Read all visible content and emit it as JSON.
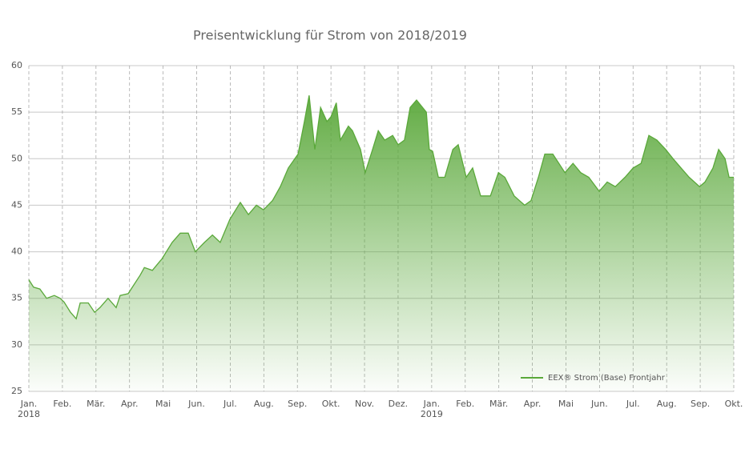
{
  "chart_data": {
    "type": "area",
    "title": "Preisentwicklung für Strom von 2018/2019",
    "series": [
      {
        "name": "EEX® Strom (Base) Frontjahr",
        "color": "#5aa83a",
        "x": [
          0,
          0.14,
          0.33,
          0.53,
          0.76,
          0.93,
          1.05,
          1.24,
          1.41,
          1.53,
          1.77,
          1.96,
          2.12,
          2.36,
          2.6,
          2.72,
          2.96,
          3.32,
          3.44,
          3.68,
          3.91,
          3.96,
          4.27,
          4.51,
          4.75,
          4.96,
          5.23,
          5.47,
          5.7,
          5.99,
          6.3,
          6.54,
          6.78,
          6.99,
          7.26,
          7.49,
          7.73,
          8.02,
          8.21,
          8.35,
          8.52,
          8.69,
          8.88,
          9.0,
          9.16,
          9.28,
          9.52,
          9.64,
          9.88,
          10.02,
          10.24,
          10.41,
          10.6,
          10.84,
          11.0,
          11.19,
          11.36,
          11.55,
          11.84,
          11.93,
          12.03,
          12.2,
          12.39,
          12.63,
          12.79,
          13.03,
          13.22,
          13.46,
          13.75,
          13.99,
          14.18,
          14.46,
          14.77,
          14.96,
          15.18,
          15.37,
          15.61,
          15.97,
          16.21,
          16.44,
          16.68,
          16.99,
          17.23,
          17.47,
          17.76,
          18.0,
          18.24,
          18.47,
          18.71,
          18.97,
          19.19,
          19.43,
          19.67,
          19.98,
          20.14,
          20.38,
          20.55,
          20.74,
          20.86,
          21.0
        ],
        "values": [
          37,
          36.2,
          36,
          35,
          35.3,
          35,
          34.6,
          33.5,
          32.8,
          34.5,
          34.5,
          33.5,
          34,
          35,
          34,
          35.3,
          35.5,
          37.5,
          38.3,
          38,
          39,
          39.2,
          41,
          42,
          42,
          40,
          41,
          41.8,
          41,
          43.5,
          45.3,
          44,
          45,
          44.5,
          45.5,
          47,
          49,
          50.5,
          54,
          56.8,
          51,
          55.5,
          54,
          54.5,
          56,
          52,
          53.5,
          53,
          51,
          48.5,
          51,
          53,
          52,
          52.5,
          51.5,
          52,
          55.5,
          56.3,
          55,
          51,
          50.8,
          48,
          48,
          51,
          51.5,
          48,
          49,
          46,
          46,
          48.5,
          48,
          46,
          45,
          45.5,
          48,
          50.5,
          50.5,
          48.5,
          49.5,
          48.5,
          48,
          46.5,
          47.5,
          47,
          48,
          49,
          49.5,
          52.5,
          52,
          51,
          50,
          49,
          48,
          47,
          47.5,
          49,
          51,
          50,
          48,
          48
        ]
      }
    ],
    "xlim": [
      0,
      21
    ],
    "xticks": [
      {
        "value": 0,
        "label": "Jan.\n2018"
      },
      {
        "value": 1,
        "label": "Feb."
      },
      {
        "value": 2,
        "label": "Mär."
      },
      {
        "value": 3,
        "label": "Apr."
      },
      {
        "value": 4,
        "label": "Mai"
      },
      {
        "value": 5,
        "label": "Jun."
      },
      {
        "value": 6,
        "label": "Jul."
      },
      {
        "value": 7,
        "label": "Aug."
      },
      {
        "value": 8,
        "label": "Sep."
      },
      {
        "value": 9,
        "label": "Okt."
      },
      {
        "value": 10,
        "label": "Nov."
      },
      {
        "value": 11,
        "label": "Dez."
      },
      {
        "value": 12,
        "label": "Jan.\n2019"
      },
      {
        "value": 13,
        "label": "Feb."
      },
      {
        "value": 14,
        "label": "Mär."
      },
      {
        "value": 15,
        "label": "Apr."
      },
      {
        "value": 16,
        "label": "Mai"
      },
      {
        "value": 17,
        "label": "Jun."
      },
      {
        "value": 18,
        "label": "Jul."
      },
      {
        "value": 19,
        "label": "Aug."
      },
      {
        "value": 20,
        "label": "Sep."
      },
      {
        "value": 21,
        "label": "Okt."
      }
    ],
    "ylim": [
      25,
      60
    ],
    "yticks": [
      25,
      30,
      35,
      40,
      45,
      50,
      55,
      60
    ],
    "grid": true,
    "legend": "lower right"
  }
}
